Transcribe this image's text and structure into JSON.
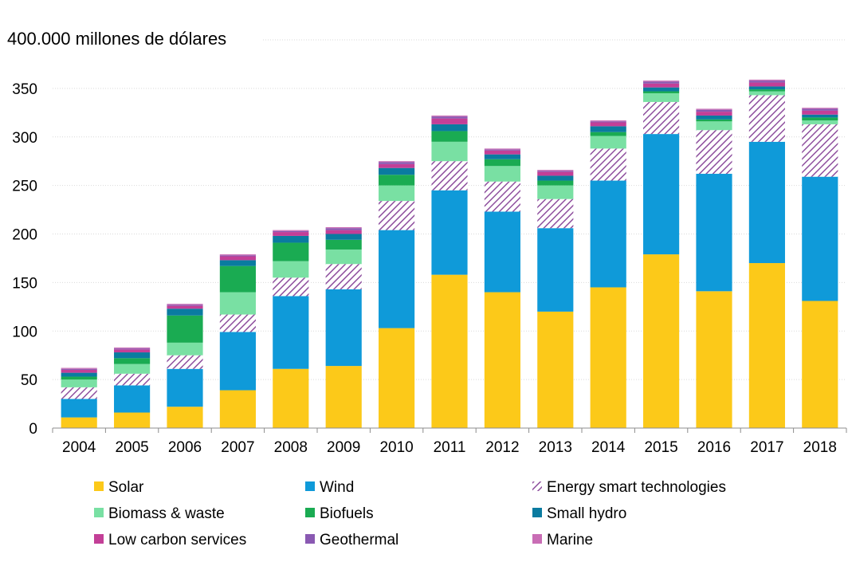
{
  "chart_data": {
    "type": "bar",
    "stacked": true,
    "title": "400.000 millones de dólares",
    "xlabel": "",
    "ylabel": "",
    "ylim": [
      0,
      400
    ],
    "yticks": [
      0,
      50,
      100,
      150,
      200,
      250,
      300,
      350
    ],
    "grid": true,
    "legend_position": "bottom",
    "categories": [
      "2004",
      "2005",
      "2006",
      "2007",
      "2008",
      "2009",
      "2010",
      "2011",
      "2012",
      "2013",
      "2014",
      "2015",
      "2016",
      "2017",
      "2018"
    ],
    "series": [
      {
        "name": "Solar",
        "color": "#FCC919",
        "pattern": "solid",
        "values": [
          11,
          16,
          22,
          39,
          61,
          64,
          103,
          158,
          140,
          120,
          145,
          179,
          141,
          170,
          131
        ]
      },
      {
        "name": "Wind",
        "color": "#0F9AD9",
        "pattern": "solid",
        "values": [
          19,
          28,
          39,
          60,
          75,
          79,
          101,
          87,
          83,
          86,
          110,
          124,
          121,
          125,
          128
        ]
      },
      {
        "name": "Energy smart technologies",
        "color": "#8E4F9E",
        "pattern": "hatch",
        "values": [
          12,
          12,
          14,
          18,
          19,
          26,
          30,
          30,
          31,
          30,
          33,
          33,
          45,
          48,
          54
        ]
      },
      {
        "name": "Biomass & waste",
        "color": "#79E0A3",
        "pattern": "solid",
        "values": [
          8,
          10,
          13,
          23,
          17,
          15,
          16,
          20,
          16,
          14,
          13,
          9,
          9,
          4,
          4
        ]
      },
      {
        "name": "Biofuels",
        "color": "#1AAB52",
        "pattern": "solid",
        "values": [
          3,
          6,
          28,
          27,
          19,
          10,
          11,
          11,
          7,
          5,
          4,
          2,
          2,
          2,
          3
        ]
      },
      {
        "name": "Small hydro",
        "color": "#0A7BA0",
        "pattern": "solid",
        "values": [
          4,
          6,
          7,
          6,
          7,
          6,
          7,
          7,
          5,
          5,
          6,
          4,
          4,
          3,
          3
        ]
      },
      {
        "name": "Low carbon services",
        "color": "#C33F97",
        "pattern": "solid",
        "values": [
          3,
          3,
          3,
          4,
          4,
          4,
          4,
          6,
          4,
          4,
          4,
          4,
          4,
          4,
          4
        ]
      },
      {
        "name": "Geothermal",
        "color": "#8A59B2",
        "pattern": "solid",
        "values": [
          1,
          1,
          1,
          1,
          1,
          2,
          2,
          2,
          1,
          1,
          1,
          2,
          2,
          2,
          2
        ]
      },
      {
        "name": "Marine",
        "color": "#C96DB5",
        "pattern": "solid",
        "values": [
          1,
          1,
          1,
          1,
          1,
          1,
          1,
          1,
          1,
          1,
          1,
          1,
          1,
          1,
          1
        ]
      }
    ]
  }
}
